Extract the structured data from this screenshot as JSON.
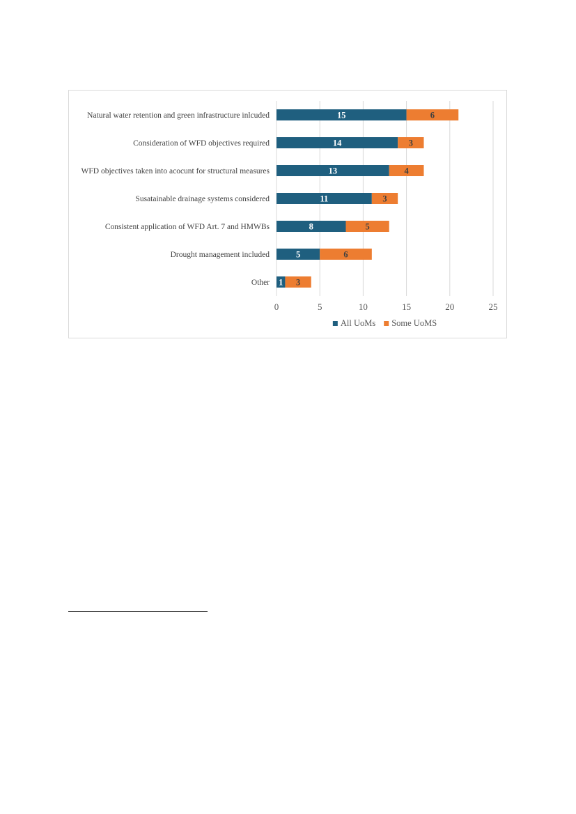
{
  "chart_data": {
    "type": "bar",
    "orientation": "horizontal",
    "stacked": true,
    "categories": [
      "Natural water retention and green infrastructure inlcuded",
      "Consideration of WFD objectives required",
      "WFD objectives taken into acocunt for structural measures",
      "Susatainable drainage systems considered",
      "Consistent application of WFD Art. 7 and HMWBs",
      "Drought management included",
      "Other"
    ],
    "series": [
      {
        "name": "All UoMs",
        "color": "#1f5f7f",
        "label_color": "#ffffff",
        "values": [
          15,
          14,
          13,
          11,
          8,
          5,
          1
        ]
      },
      {
        "name": "Some UoMS",
        "color": "#ed7d31",
        "label_color": "#404040",
        "values": [
          6,
          3,
          4,
          3,
          5,
          6,
          3
        ]
      }
    ],
    "xlim": [
      0,
      25
    ],
    "x_ticks": [
      0,
      5,
      10,
      15,
      20,
      25
    ],
    "grid": "vertical",
    "grid_color": "#d9d9d9",
    "data_labels": true,
    "legend_position": "bottom",
    "title": "",
    "xlabel": "",
    "ylabel": ""
  }
}
